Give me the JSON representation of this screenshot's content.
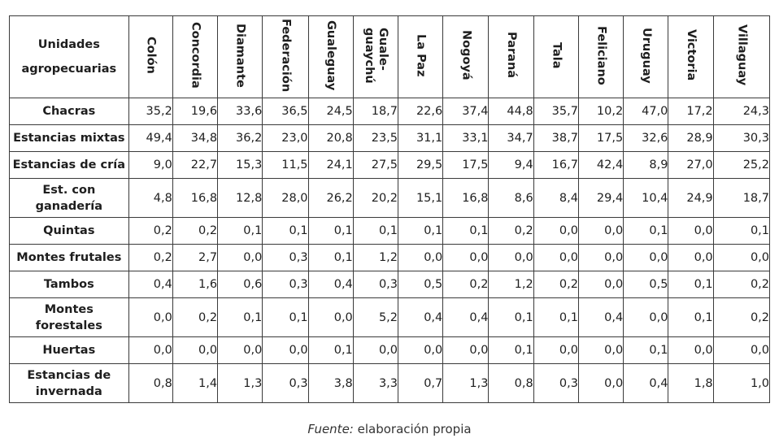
{
  "table": {
    "corner": "Unidades agropecuarias",
    "columns": [
      "Colón",
      "Concordia",
      "Diamante",
      "Federación",
      "Gualeguay",
      "Guale-\nguaychú",
      "La Paz",
      "Nogoyá",
      "Paraná",
      "Tala",
      "Feliciano",
      "Uruguay",
      "Victoria",
      "Villaguay"
    ],
    "rows": [
      {
        "label": "Chacras",
        "values": [
          "35,2",
          "19,6",
          "33,6",
          "36,5",
          "24,5",
          "18,7",
          "22,6",
          "37,4",
          "44,8",
          "35,7",
          "10,2",
          "47,0",
          "17,2",
          "24,3"
        ]
      },
      {
        "label": "Estancias mixtas",
        "values": [
          "49,4",
          "34,8",
          "36,2",
          "23,0",
          "20,8",
          "23,5",
          "31,1",
          "33,1",
          "34,7",
          "38,7",
          "17,5",
          "32,6",
          "28,9",
          "30,3"
        ]
      },
      {
        "label": "Estancias de cría",
        "values": [
          "9,0",
          "22,7",
          "15,3",
          "11,5",
          "24,1",
          "27,5",
          "29,5",
          "17,5",
          "9,4",
          "16,7",
          "42,4",
          "8,9",
          "27,0",
          "25,2"
        ]
      },
      {
        "label": "Est. con ganadería",
        "values": [
          "4,8",
          "16,8",
          "12,8",
          "28,0",
          "26,2",
          "20,2",
          "15,1",
          "16,8",
          "8,6",
          "8,4",
          "29,4",
          "10,4",
          "24,9",
          "18,7"
        ]
      },
      {
        "label": "Quintas",
        "values": [
          "0,2",
          "0,2",
          "0,1",
          "0,1",
          "0,1",
          "0,1",
          "0,1",
          "0,1",
          "0,2",
          "0,0",
          "0,0",
          "0,1",
          "0,0",
          "0,1"
        ]
      },
      {
        "label": "Montes frutales",
        "values": [
          "0,2",
          "2,7",
          "0,0",
          "0,3",
          "0,1",
          "1,2",
          "0,0",
          "0,0",
          "0,0",
          "0,0",
          "0,0",
          "0,0",
          "0,0",
          "0,0"
        ]
      },
      {
        "label": "Tambos",
        "values": [
          "0,4",
          "1,6",
          "0,6",
          "0,3",
          "0,4",
          "0,3",
          "0,5",
          "0,2",
          "1,2",
          "0,2",
          "0,0",
          "0,5",
          "0,1",
          "0,2"
        ]
      },
      {
        "label": "Montes forestales",
        "values": [
          "0,0",
          "0,2",
          "0,1",
          "0,1",
          "0,0",
          "5,2",
          "0,4",
          "0,4",
          "0,1",
          "0,1",
          "0,4",
          "0,0",
          "0,1",
          "0,2"
        ]
      },
      {
        "label": "Huertas",
        "values": [
          "0,0",
          "0,0",
          "0,0",
          "0,0",
          "0,1",
          "0,0",
          "0,0",
          "0,0",
          "0,1",
          "0,0",
          "0,0",
          "0,1",
          "0,0",
          "0,0"
        ]
      },
      {
        "label": "Estancias de invernada",
        "values": [
          "0,8",
          "1,4",
          "1,3",
          "0,3",
          "3,8",
          "3,3",
          "0,7",
          "1,3",
          "0,8",
          "0,3",
          "0,0",
          "0,4",
          "1,8",
          "1,0"
        ]
      }
    ]
  },
  "source": {
    "label": "Fuente:",
    "text": " elaboración propia"
  }
}
